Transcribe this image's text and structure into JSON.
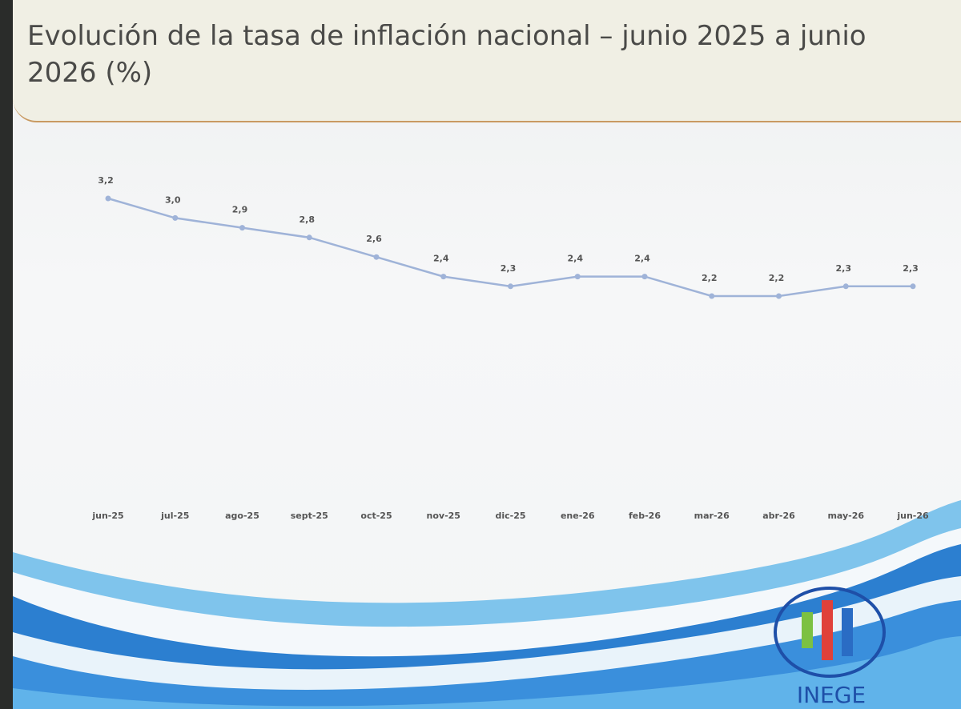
{
  "chart_data": {
    "type": "line",
    "title": "Evolución de la tasa de inflación nacional – junio 2025 a junio 2026 (%)",
    "categories": [
      "jun-25",
      "jul-25",
      "ago-25",
      "sept-25",
      "oct-25",
      "nov-25",
      "dic-25",
      "ene-26",
      "feb-26",
      "mar-26",
      "abr-26",
      "may-26",
      "jun-26"
    ],
    "values": [
      3.2,
      3.0,
      2.9,
      2.8,
      2.6,
      2.4,
      2.3,
      2.4,
      2.4,
      2.2,
      2.2,
      2.3,
      2.3
    ],
    "value_labels": [
      "3,2",
      "3,0",
      "2,9",
      "2,8",
      "2,6",
      "2,4",
      "2,3",
      "2,4",
      "2,4",
      "2,2",
      "2,2",
      "2,3",
      "2,3"
    ],
    "color": "#9fb3d8"
  },
  "logo": {
    "text": "INEGE"
  }
}
